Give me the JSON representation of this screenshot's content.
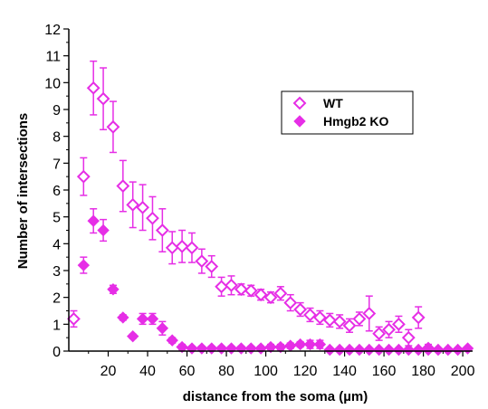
{
  "chart_data": {
    "type": "scatter",
    "xlabel": "distance from the soma (µm)",
    "ylabel": "Number of intersections",
    "xlim": [
      0,
      205
    ],
    "ylim": [
      0,
      12
    ],
    "xticks": [
      20,
      40,
      60,
      80,
      100,
      120,
      140,
      160,
      180,
      200
    ],
    "yticks": [
      0,
      1,
      2,
      3,
      4,
      5,
      6,
      7,
      8,
      9,
      10,
      11,
      12
    ],
    "grid": false,
    "legend_position": "top-right",
    "series": [
      {
        "name": "WT",
        "marker": "open-diamond",
        "color": "#e62ee6",
        "points": [
          {
            "x": 2.5,
            "y": 1.2,
            "err": 0.3
          },
          {
            "x": 7.5,
            "y": 6.5,
            "err": 0.7
          },
          {
            "x": 12.5,
            "y": 9.8,
            "err": 1.0
          },
          {
            "x": 17.5,
            "y": 9.4,
            "err": 1.15
          },
          {
            "x": 22.5,
            "y": 8.35,
            "err": 0.95
          },
          {
            "x": 27.5,
            "y": 6.15,
            "err": 0.95
          },
          {
            "x": 32.5,
            "y": 5.45,
            "err": 0.85
          },
          {
            "x": 37.5,
            "y": 5.35,
            "err": 0.85
          },
          {
            "x": 42.5,
            "y": 4.95,
            "err": 0.8
          },
          {
            "x": 47.5,
            "y": 4.5,
            "err": 0.8
          },
          {
            "x": 52.5,
            "y": 3.85,
            "err": 0.6
          },
          {
            "x": 57.5,
            "y": 3.9,
            "err": 0.6
          },
          {
            "x": 62.5,
            "y": 3.85,
            "err": 0.55
          },
          {
            "x": 67.5,
            "y": 3.35,
            "err": 0.45
          },
          {
            "x": 72.5,
            "y": 3.15,
            "err": 0.4
          },
          {
            "x": 77.5,
            "y": 2.4,
            "err": 0.35
          },
          {
            "x": 82.5,
            "y": 2.45,
            "err": 0.35
          },
          {
            "x": 87.5,
            "y": 2.3,
            "err": 0.2
          },
          {
            "x": 92.5,
            "y": 2.25,
            "err": 0.2
          },
          {
            "x": 97.5,
            "y": 2.1,
            "err": 0.2
          },
          {
            "x": 102.5,
            "y": 2.0,
            "err": 0.2
          },
          {
            "x": 107.5,
            "y": 2.15,
            "err": 0.25
          },
          {
            "x": 112.5,
            "y": 1.8,
            "err": 0.3
          },
          {
            "x": 117.5,
            "y": 1.55,
            "err": 0.25
          },
          {
            "x": 122.5,
            "y": 1.35,
            "err": 0.25
          },
          {
            "x": 127.5,
            "y": 1.25,
            "err": 0.25
          },
          {
            "x": 132.5,
            "y": 1.15,
            "err": 0.25
          },
          {
            "x": 137.5,
            "y": 1.1,
            "err": 0.25
          },
          {
            "x": 142.5,
            "y": 0.95,
            "err": 0.25
          },
          {
            "x": 147.5,
            "y": 1.2,
            "err": 0.25
          },
          {
            "x": 152.5,
            "y": 1.4,
            "err": 0.65
          },
          {
            "x": 157.5,
            "y": 0.65,
            "err": 0.25
          },
          {
            "x": 162.5,
            "y": 0.8,
            "err": 0.3
          },
          {
            "x": 167.5,
            "y": 1.0,
            "err": 0.3
          },
          {
            "x": 172.5,
            "y": 0.5,
            "err": 0.3
          },
          {
            "x": 177.5,
            "y": 1.25,
            "err": 0.4
          },
          {
            "x": 182.5,
            "y": 0.1,
            "err": 0.15
          }
        ]
      },
      {
        "name": "Hmgb2 KO",
        "marker": "filled-diamond",
        "color": "#e62ee6",
        "points": [
          {
            "x": 7.5,
            "y": 3.2,
            "err": 0.3
          },
          {
            "x": 12.5,
            "y": 4.85,
            "err": 0.45
          },
          {
            "x": 17.5,
            "y": 4.5,
            "err": 0.4
          },
          {
            "x": 22.5,
            "y": 2.3,
            "err": 0.15
          },
          {
            "x": 27.5,
            "y": 1.25,
            "err": 0.1
          },
          {
            "x": 32.5,
            "y": 0.55,
            "err": 0.08
          },
          {
            "x": 37.5,
            "y": 1.2,
            "err": 0.2
          },
          {
            "x": 42.5,
            "y": 1.2,
            "err": 0.2
          },
          {
            "x": 47.5,
            "y": 0.85,
            "err": 0.25
          },
          {
            "x": 52.5,
            "y": 0.4,
            "err": 0.1
          },
          {
            "x": 57.5,
            "y": 0.15,
            "err": 0.1
          },
          {
            "x": 62.5,
            "y": 0.1,
            "err": 0.08
          },
          {
            "x": 67.5,
            "y": 0.1,
            "err": 0.08
          },
          {
            "x": 72.5,
            "y": 0.1,
            "err": 0.08
          },
          {
            "x": 77.5,
            "y": 0.1,
            "err": 0.08
          },
          {
            "x": 82.5,
            "y": 0.1,
            "err": 0.08
          },
          {
            "x": 87.5,
            "y": 0.1,
            "err": 0.08
          },
          {
            "x": 92.5,
            "y": 0.1,
            "err": 0.08
          },
          {
            "x": 97.5,
            "y": 0.1,
            "err": 0.08
          },
          {
            "x": 102.5,
            "y": 0.15,
            "err": 0.1
          },
          {
            "x": 107.5,
            "y": 0.15,
            "err": 0.1
          },
          {
            "x": 112.5,
            "y": 0.2,
            "err": 0.1
          },
          {
            "x": 117.5,
            "y": 0.25,
            "err": 0.1
          },
          {
            "x": 122.5,
            "y": 0.25,
            "err": 0.15
          },
          {
            "x": 127.5,
            "y": 0.25,
            "err": 0.15
          },
          {
            "x": 132.5,
            "y": 0.05,
            "err": 0.05
          },
          {
            "x": 137.5,
            "y": 0.05,
            "err": 0.05
          },
          {
            "x": 142.5,
            "y": 0.05,
            "err": 0.05
          },
          {
            "x": 147.5,
            "y": 0.05,
            "err": 0.05
          },
          {
            "x": 152.5,
            "y": 0.05,
            "err": 0.05
          },
          {
            "x": 157.5,
            "y": 0.05,
            "err": 0.05
          },
          {
            "x": 162.5,
            "y": 0.05,
            "err": 0.05
          },
          {
            "x": 167.5,
            "y": 0.05,
            "err": 0.05
          },
          {
            "x": 172.5,
            "y": 0.05,
            "err": 0.05
          },
          {
            "x": 177.5,
            "y": 0.05,
            "err": 0.05
          },
          {
            "x": 182.5,
            "y": 0.05,
            "err": 0.05
          },
          {
            "x": 187.5,
            "y": 0.05,
            "err": 0.05
          },
          {
            "x": 192.5,
            "y": 0.05,
            "err": 0.05
          },
          {
            "x": 197.5,
            "y": 0.05,
            "err": 0.05
          },
          {
            "x": 202.5,
            "y": 0.1,
            "err": 0.05
          }
        ]
      }
    ]
  }
}
